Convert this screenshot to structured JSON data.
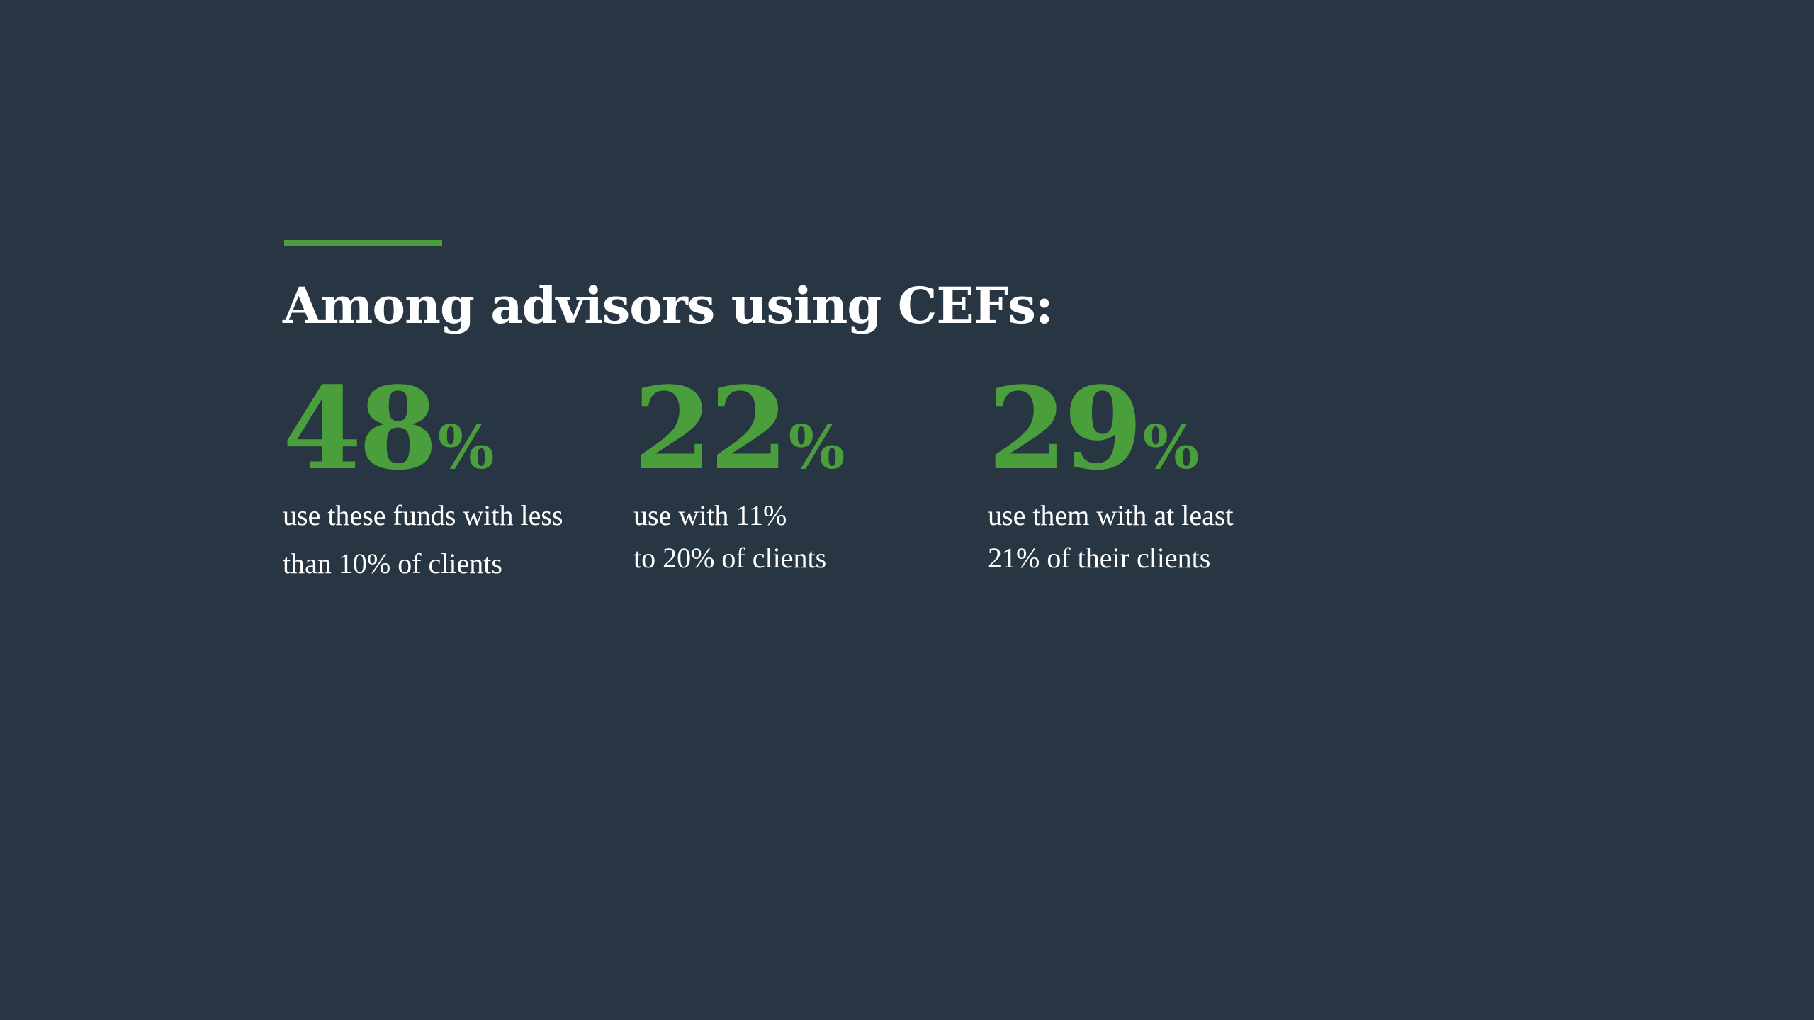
{
  "headline": "Among advisors using CEFs:",
  "accent_color": "#4a9e3c",
  "background_color": "#283543",
  "stats": [
    {
      "value": "48",
      "unit": "%",
      "desc_line1": "use these funds with less",
      "desc_line2": "than 10% of clients"
    },
    {
      "value": "22",
      "unit": "%",
      "desc_line1": "use with 11%",
      "desc_line2": "to 20% of clients"
    },
    {
      "value": "29",
      "unit": "%",
      "desc_line1": "use them with at least",
      "desc_line2": "21% of their clients"
    }
  ]
}
